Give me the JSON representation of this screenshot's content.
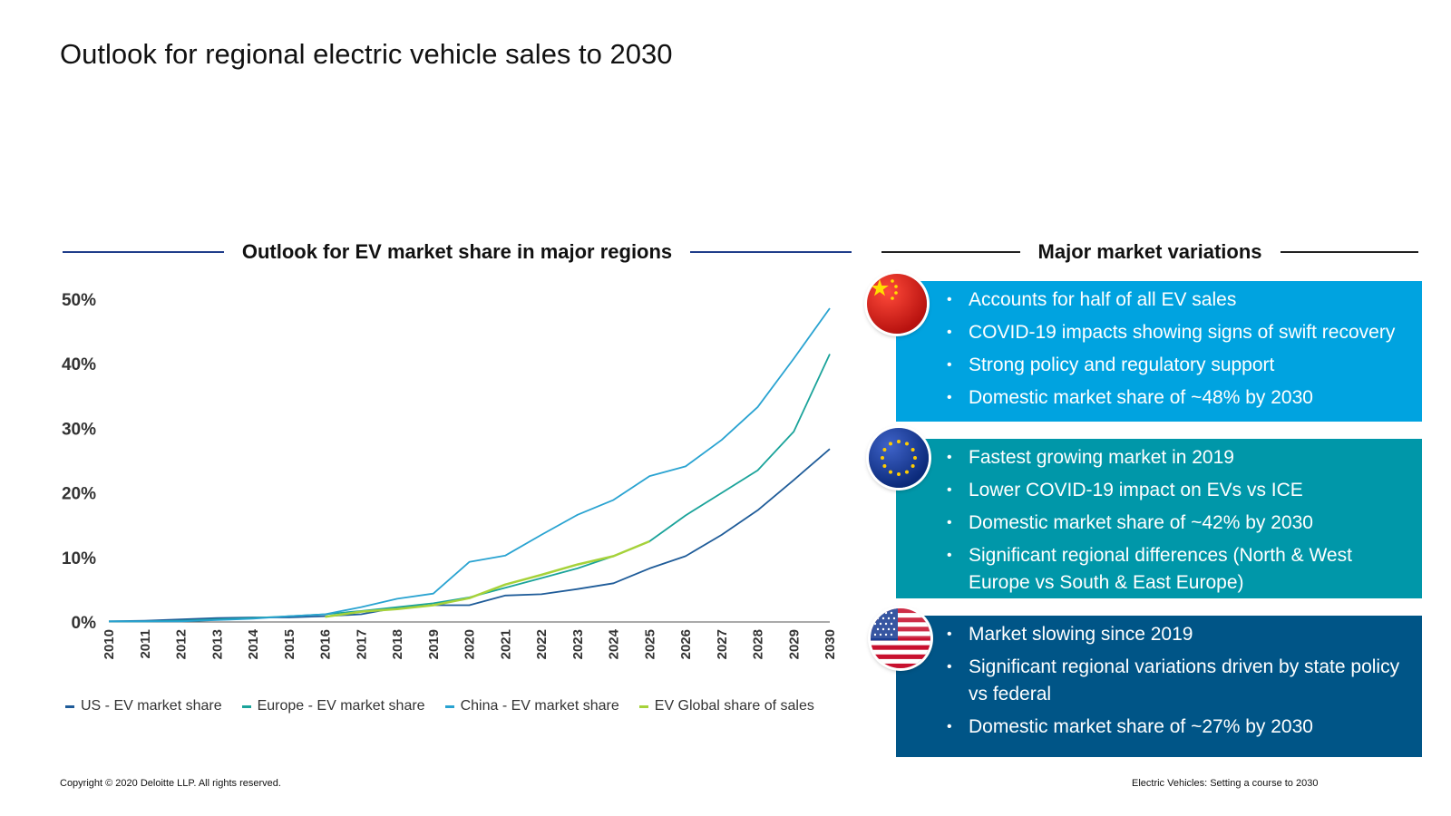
{
  "page": {
    "title": "Outlook for regional electric vehicle sales to 2030",
    "left_heading": "Outlook for EV market share in major regions",
    "right_heading": "Major market variations"
  },
  "colors": {
    "us": "#1f5c99",
    "europe": "#1aa39a",
    "china": "#29a3d1",
    "global": "#a6d23a",
    "panel_china": "#00a3e0",
    "panel_europe": "#0097a9",
    "panel_us": "#005587"
  },
  "chart_data": {
    "type": "line",
    "x": [
      "2010",
      "2011",
      "2012",
      "2013",
      "2014",
      "2015",
      "2016",
      "2017",
      "2018",
      "2019",
      "2020",
      "2021",
      "2022",
      "2023",
      "2024",
      "2025",
      "2026",
      "2027",
      "2028",
      "2029",
      "2030"
    ],
    "y_ticks": [
      "0%",
      "10%",
      "20%",
      "30%",
      "40%",
      "50%"
    ],
    "ylim": [
      0,
      50
    ],
    "grid": false,
    "legend_position": "bottom",
    "series": [
      {
        "name": "US - EV market share",
        "color": "#1f5c99",
        "values": [
          0.1,
          0.2,
          0.4,
          0.6,
          0.7,
          0.7,
          0.9,
          1.2,
          2.2,
          2.6,
          2.6,
          4.1,
          4.3,
          5.1,
          6.0,
          8.3,
          10.2,
          13.5,
          17.3,
          22.0,
          26.8
        ]
      },
      {
        "name": "Europe - EV market share",
        "color": "#1aa39a",
        "values": [
          0.1,
          0.1,
          0.2,
          0.4,
          0.6,
          0.9,
          1.2,
          1.7,
          2.3,
          2.9,
          3.8,
          5.3,
          6.8,
          8.3,
          10.2,
          12.5,
          16.5,
          20.0,
          23.5,
          29.5,
          41.5
        ]
      },
      {
        "name": "China - EV market share",
        "color": "#29a3d1",
        "values": [
          0.1,
          0.1,
          0.1,
          0.3,
          0.5,
          0.9,
          1.2,
          2.3,
          3.6,
          4.4,
          9.3,
          10.3,
          13.5,
          16.6,
          18.9,
          22.6,
          24.1,
          28.2,
          33.3,
          40.8,
          48.6
        ]
      },
      {
        "name": "EV Global share of sales",
        "color": "#a6d23a",
        "values": [
          null,
          null,
          null,
          null,
          null,
          null,
          0.8,
          1.6,
          2.0,
          2.6,
          3.7,
          5.8,
          7.3,
          8.9,
          10.2,
          12.5,
          null,
          null,
          null,
          null,
          null
        ]
      }
    ]
  },
  "panels": {
    "china": {
      "flag": "china-flag",
      "items": [
        "Accounts for half of all EV sales",
        "COVID-19 impacts showing signs of swift recovery",
        "Strong policy and regulatory support",
        "Domestic market share of ~48% by 2030"
      ]
    },
    "europe": {
      "flag": "eu-flag",
      "items": [
        "Fastest growing market in 2019",
        "Lower COVID-19 impact on EVs vs ICE",
        "Domestic market share of ~42% by 2030",
        "Significant regional differences (North & West Europe vs South & East Europe)"
      ]
    },
    "us": {
      "flag": "us-flag",
      "items": [
        "Market slowing since 2019",
        "Significant regional variations driven by state policy vs federal",
        "Domestic market share of ~27% by 2030"
      ]
    }
  },
  "footer": {
    "copyright": "Copyright © 2020 Deloitte LLP. All rights reserved.",
    "doc_title": "Electric Vehicles: Setting a course to 2030"
  }
}
